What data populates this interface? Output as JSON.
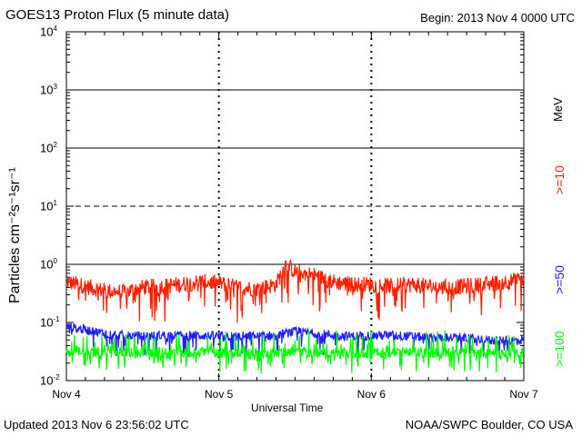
{
  "header": {
    "title": "GOES13 Proton Flux (5 minute data)",
    "begin": "Begin: 2013 Nov 4 0000 UTC"
  },
  "footer": {
    "updated": "Updated 2013 Nov  6 23:56:02 UTC",
    "credit": "NOAA/SWPC Boulder, CO USA"
  },
  "legend": {
    "unit": "MeV",
    "items": [
      {
        "label": ">=10",
        "color": "#ff2000"
      },
      {
        "label": ">=50",
        "color": "#2020ff"
      },
      {
        "label": ">=100",
        "color": "#00ff00"
      }
    ]
  },
  "chart_data": {
    "type": "line",
    "title": "GOES13 Proton Flux (5 minute data)",
    "xlabel": "Universal Time",
    "ylabel": "Particles cm⁻²s⁻¹sr⁻¹",
    "yscale": "log",
    "ylim": [
      0.01,
      10000
    ],
    "xlim": [
      0,
      72
    ],
    "x_ticks": [
      {
        "label": "Nov 4",
        "hour": 0
      },
      {
        "label": "Nov 5",
        "hour": 24
      },
      {
        "label": "Nov 6",
        "hour": 48
      },
      {
        "label": "Nov 7",
        "hour": 72
      }
    ],
    "y_ticks": [
      {
        "base": "10",
        "exp": "4",
        "value": 10000
      },
      {
        "base": "10",
        "exp": "3",
        "value": 1000
      },
      {
        "base": "10",
        "exp": "2",
        "value": 100
      },
      {
        "base": "10",
        "exp": "1",
        "value": 10
      },
      {
        "base": "10",
        "exp": "0",
        "value": 1
      },
      {
        "base": "10",
        "exp": "-1",
        "value": 0.1
      },
      {
        "base": "10",
        "exp": "-2",
        "value": 0.01
      }
    ],
    "solid_thresholds": [
      1000,
      100,
      1
    ],
    "dashed_thresholds": [
      10
    ],
    "series": [
      {
        "name": ">=10 MeV",
        "color": "#ff2000",
        "hours": [
          0,
          3,
          6,
          9,
          12,
          15,
          18,
          21,
          24,
          27,
          30,
          33,
          34.5,
          36,
          39,
          42,
          45,
          48,
          51,
          54,
          57,
          60,
          63,
          66,
          69,
          72
        ],
        "values": [
          0.5,
          0.42,
          0.35,
          0.33,
          0.4,
          0.42,
          0.45,
          0.5,
          0.48,
          0.4,
          0.38,
          0.45,
          1.0,
          0.75,
          0.65,
          0.5,
          0.45,
          0.45,
          0.42,
          0.45,
          0.42,
          0.4,
          0.42,
          0.45,
          0.5,
          0.55
        ]
      },
      {
        "name": ">=50 MeV",
        "color": "#2020ff",
        "hours": [
          0,
          3,
          6,
          9,
          12,
          15,
          18,
          21,
          24,
          27,
          30,
          33,
          36,
          39,
          42,
          45,
          48,
          51,
          54,
          57,
          60,
          63,
          66,
          69,
          72
        ],
        "values": [
          0.085,
          0.075,
          0.065,
          0.06,
          0.058,
          0.06,
          0.06,
          0.06,
          0.058,
          0.058,
          0.058,
          0.06,
          0.07,
          0.065,
          0.06,
          0.058,
          0.06,
          0.06,
          0.058,
          0.055,
          0.055,
          0.055,
          0.05,
          0.048,
          0.05
        ]
      },
      {
        "name": ">=100 MeV",
        "color": "#00ff00",
        "hours": [
          0,
          3,
          6,
          9,
          12,
          15,
          18,
          21,
          24,
          27,
          30,
          33,
          36,
          39,
          42,
          45,
          48,
          51,
          54,
          57,
          60,
          63,
          66,
          69,
          72
        ],
        "values": [
          0.032,
          0.03,
          0.03,
          0.03,
          0.03,
          0.03,
          0.03,
          0.03,
          0.03,
          0.03,
          0.03,
          0.03,
          0.033,
          0.03,
          0.03,
          0.03,
          0.03,
          0.03,
          0.03,
          0.03,
          0.03,
          0.03,
          0.03,
          0.028,
          0.03
        ]
      }
    ]
  }
}
